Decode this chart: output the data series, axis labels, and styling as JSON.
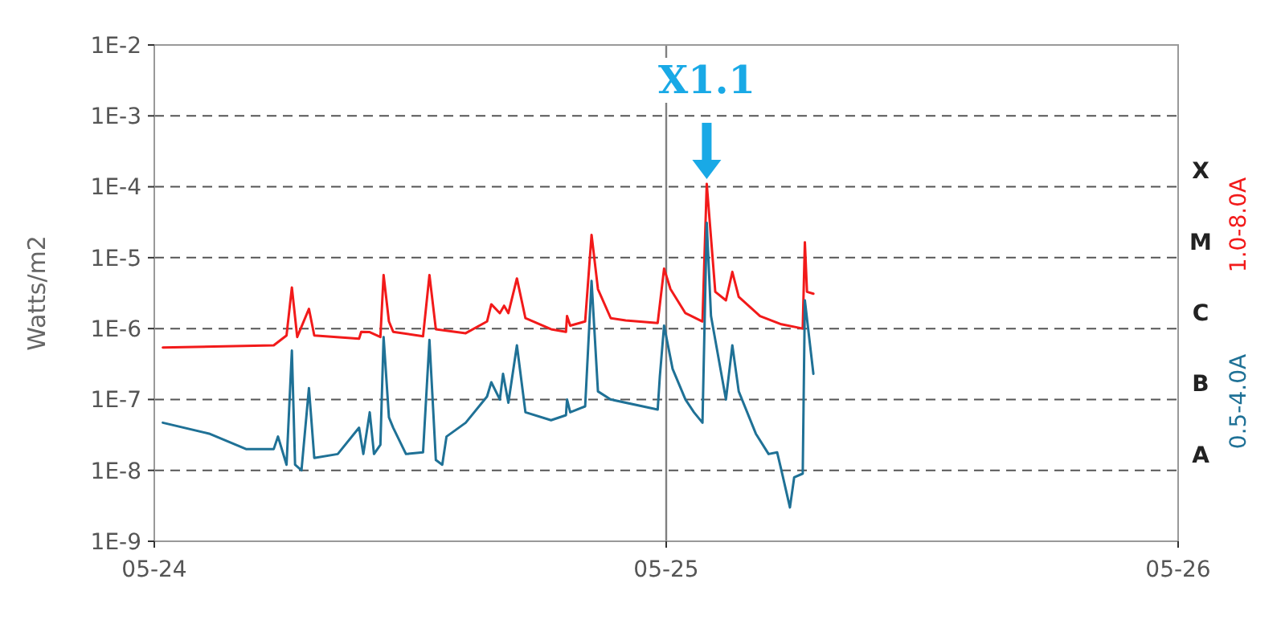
{
  "chart_data": {
    "type": "line",
    "ylabel": "Watts/m2",
    "log": "y",
    "legend": "right",
    "marker": "none",
    "line_style": "solid",
    "xlim": [
      "--05-24",
      "--05-26"
    ],
    "xticks": [
      {
        "value": "--05-24",
        "label": "05-24"
      },
      {
        "value": "--05-25",
        "label": "05-25"
      },
      {
        "value": "--05-26",
        "label": "05-26"
      }
    ],
    "ylim": [
      1e-09,
      0.01
    ],
    "yticks": [
      {
        "value": 1e-09,
        "label": "1E-9"
      },
      {
        "value": 1e-08,
        "label": "1E-8"
      },
      {
        "value": 1e-07,
        "label": "1E-7"
      },
      {
        "value": 1e-06,
        "label": "1E-6"
      },
      {
        "value": 1e-05,
        "label": "1E-5"
      },
      {
        "value": 0.0001,
        "label": "1E-4"
      },
      {
        "value": 0.001,
        "label": "1E-3"
      },
      {
        "value": 0.01,
        "label": "1E-2"
      }
    ],
    "ref_lines": [
      {
        "axis": "x",
        "value": "--05-25",
        "color": "#808080",
        "line_style": "solid"
      },
      {
        "axis": "y",
        "value": 0.001,
        "color": "#555555",
        "line_style": "dashed"
      },
      {
        "axis": "y",
        "value": 0.0001,
        "label": "X",
        "color": "#555555",
        "line_style": "dashed"
      },
      {
        "axis": "y",
        "value": 1e-05,
        "label": "M",
        "color": "#555555",
        "line_style": "dashed"
      },
      {
        "axis": "y",
        "value": 1e-06,
        "label": "C",
        "color": "#555555",
        "line_style": "dashed"
      },
      {
        "axis": "y",
        "value": 1e-07,
        "label": "B",
        "color": "#555555",
        "line_style": "dashed"
      },
      {
        "axis": "y",
        "value": 1e-08,
        "label": "A",
        "color": "#555555",
        "line_style": "dashed"
      }
    ],
    "annotations": [
      {
        "text": "X1.1",
        "x": "--05-25T01:54",
        "y": 0.00011
      }
    ],
    "series": [
      {
        "name": "1.0-8.0A",
        "color": "#f21a1a",
        "x": [
          "--05-24T00:24",
          "--05-24T05:36",
          "--05-24T06:12",
          "--05-24T06:27",
          "--05-24T06:42",
          "--05-24T07:15",
          "--05-24T07:30",
          "--05-24T09:36",
          "--05-24T09:42",
          "--05-24T10:06",
          "--05-24T10:36",
          "--05-24T10:45",
          "--05-24T11:00",
          "--05-24T11:12",
          "--05-24T12:36",
          "--05-24T12:54",
          "--05-24T13:12",
          "--05-24T14:36",
          "--05-24T15:36",
          "--05-24T15:48",
          "--05-24T16:12",
          "--05-24T16:24",
          "--05-24T16:36",
          "--05-24T17:00",
          "--05-24T17:24",
          "--05-24T18:36",
          "--05-24T19:18",
          "--05-24T19:21",
          "--05-24T19:30",
          "--05-24T20:12",
          "--05-24T20:30",
          "--05-24T20:48",
          "--05-24T21:24",
          "--05-24T22:06",
          "--05-24T23:36",
          "--05-24T23:54",
          "--05-25T00:12",
          "--05-25T00:54",
          "--05-25T01:42",
          "--05-25T01:54",
          "--05-25T02:18",
          "--05-25T02:48",
          "--05-25T03:06",
          "--05-25T03:24",
          "--05-25T04:24",
          "--05-25T05:24",
          "--05-25T06:24",
          "--05-25T06:30",
          "--05-25T06:36",
          "--05-25T06:54"
        ],
        "values": [
          5.4e-07,
          5.8e-07,
          8e-07,
          3.8e-06,
          7.6e-07,
          1.9e-06,
          8e-07,
          7.2e-07,
          9e-07,
          8.9e-07,
          7.6e-07,
          5.7e-06,
          1.26e-06,
          9e-07,
          7.8e-07,
          5.7e-06,
          9.8e-07,
          8.6e-07,
          1.26e-06,
          2.2e-06,
          1.65e-06,
          2.1e-06,
          1.65e-06,
          5.1e-06,
          1.4e-06,
          9.8e-07,
          9e-07,
          1.5e-06,
          1.1e-06,
          1.26e-06,
          2.1e-05,
          3.6e-06,
          1.4e-06,
          1.3e-06,
          1.2e-06,
          7e-06,
          3.6e-06,
          1.65e-06,
          1.26e-06,
          0.00011,
          3.3e-06,
          2.5e-06,
          6.3e-06,
          2.8e-06,
          1.5e-06,
          1.15e-06,
          1e-06,
          1.65e-05,
          3.3e-06,
          3.1e-06
        ]
      },
      {
        "name": "0.5-4.0A",
        "color": "#1f7196",
        "x": [
          "--05-24T00:24",
          "--05-24T02:34",
          "--05-24T04:18",
          "--05-24T05:36",
          "--05-24T05:48",
          "--05-24T06:12",
          "--05-24T06:27",
          "--05-24T06:36",
          "--05-24T06:54",
          "--05-24T07:15",
          "--05-24T07:30",
          "--05-24T08:36",
          "--05-24T09:36",
          "--05-24T09:48",
          "--05-24T10:06",
          "--05-24T10:18",
          "--05-24T10:36",
          "--05-24T10:45",
          "--05-24T11:00",
          "--05-24T11:12",
          "--05-24T11:48",
          "--05-24T12:36",
          "--05-24T12:54",
          "--05-24T13:12",
          "--05-24T13:30",
          "--05-24T13:42",
          "--05-24T14:36",
          "--05-24T15:36",
          "--05-24T15:48",
          "--05-24T16:12",
          "--05-24T16:21",
          "--05-24T16:36",
          "--05-24T17:00",
          "--05-24T17:24",
          "--05-24T18:36",
          "--05-24T19:18",
          "--05-24T19:21",
          "--05-24T19:30",
          "--05-24T20:12",
          "--05-24T20:30",
          "--05-24T20:48",
          "--05-24T21:24",
          "--05-24T23:36",
          "--05-24T23:42",
          "--05-24T23:54",
          "--05-25T00:18",
          "--05-25T00:54",
          "--05-25T01:18",
          "--05-25T01:42",
          "--05-25T01:54",
          "--05-25T02:06",
          "--05-25T02:48",
          "--05-25T03:06",
          "--05-25T03:24",
          "--05-25T04:12",
          "--05-25T04:48",
          "--05-25T05:12",
          "--05-25T05:24",
          "--05-25T05:48",
          "--05-25T06:00",
          "--05-25T06:24",
          "--05-25T06:30",
          "--05-25T06:54"
        ],
        "values": [
          4.7e-08,
          3.3e-08,
          2e-08,
          2e-08,
          3e-08,
          1.2e-08,
          4.9e-07,
          1.2e-08,
          1e-08,
          1.45e-07,
          1.5e-08,
          1.7e-08,
          4e-08,
          1.7e-08,
          6.6e-08,
          1.7e-08,
          2.3e-08,
          7.6e-07,
          5.6e-08,
          4e-08,
          1.7e-08,
          1.8e-08,
          6.9e-07,
          1.4e-08,
          1.2e-08,
          3e-08,
          4.7e-08,
          1.1e-07,
          1.75e-07,
          1e-07,
          2.3e-07,
          9e-08,
          5.8e-07,
          6.6e-08,
          5.1e-08,
          6e-08,
          1e-07,
          6.6e-08,
          8e-08,
          4.7e-06,
          1.3e-07,
          1e-07,
          7.2e-08,
          2.1e-07,
          1.1e-06,
          2.7e-07,
          1e-07,
          6.6e-08,
          4.7e-08,
          3.1e-05,
          1.5e-06,
          1e-07,
          5.8e-07,
          1.3e-07,
          3.3e-08,
          1.7e-08,
          1.8e-08,
          1e-08,
          3e-09,
          8e-09,
          9e-09,
          2.5e-06,
          2.3e-07
        ]
      }
    ]
  }
}
